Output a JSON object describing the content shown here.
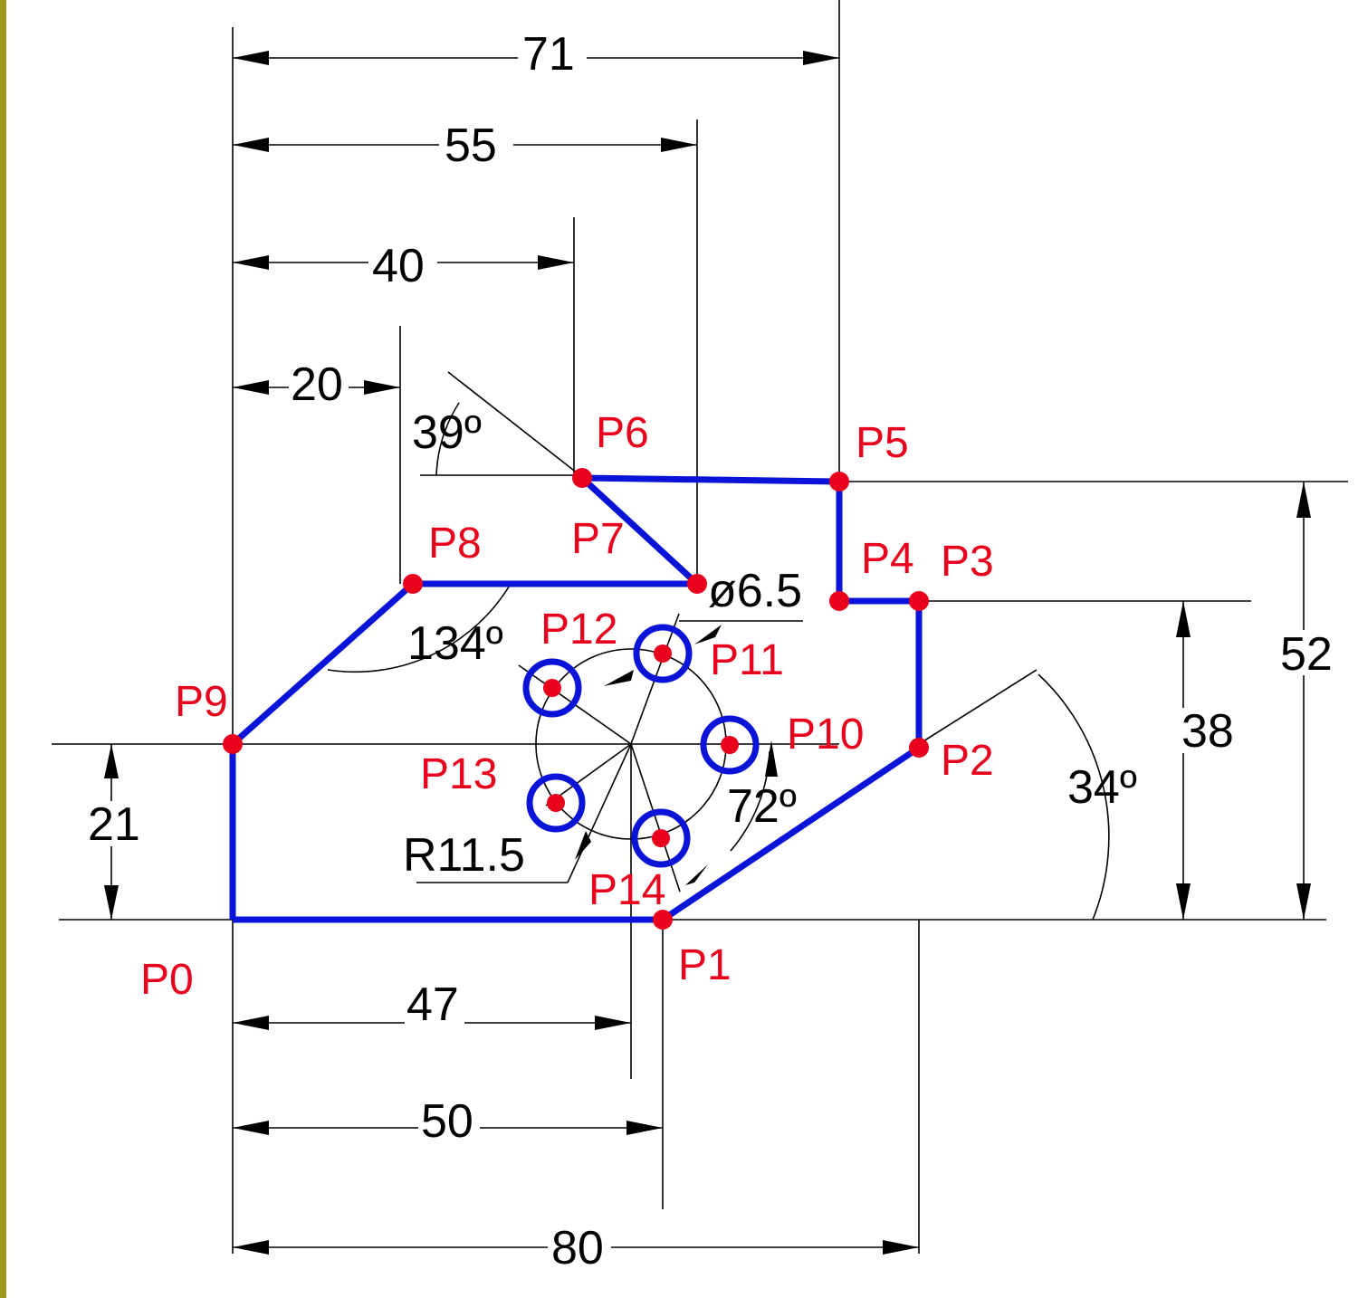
{
  "diagram": {
    "dimensions": {
      "d71": "71",
      "d55": "55",
      "d40": "40",
      "d20": "20",
      "d52": "52",
      "d38": "38",
      "d21": "21",
      "d47": "47",
      "d50": "50",
      "d80": "80",
      "diameter": "ø6.5",
      "radius": "R11.5"
    },
    "angles": {
      "a39": "39º",
      "a134": "134º",
      "a72": "72º",
      "a34": "34º"
    },
    "points": {
      "P0": "P0",
      "P1": "P1",
      "P2": "P2",
      "P3": "P3",
      "P4": "P4",
      "P5": "P5",
      "P6": "P6",
      "P7": "P7",
      "P8": "P8",
      "P9": "P9",
      "P10": "P10",
      "P11": "P11",
      "P12": "P12",
      "P13": "P13",
      "P14": "P14"
    },
    "colors": {
      "outline": "#0a14d8",
      "points": "#e8001c",
      "dimensions": "#000000",
      "frame": "#9c9a1c"
    }
  }
}
